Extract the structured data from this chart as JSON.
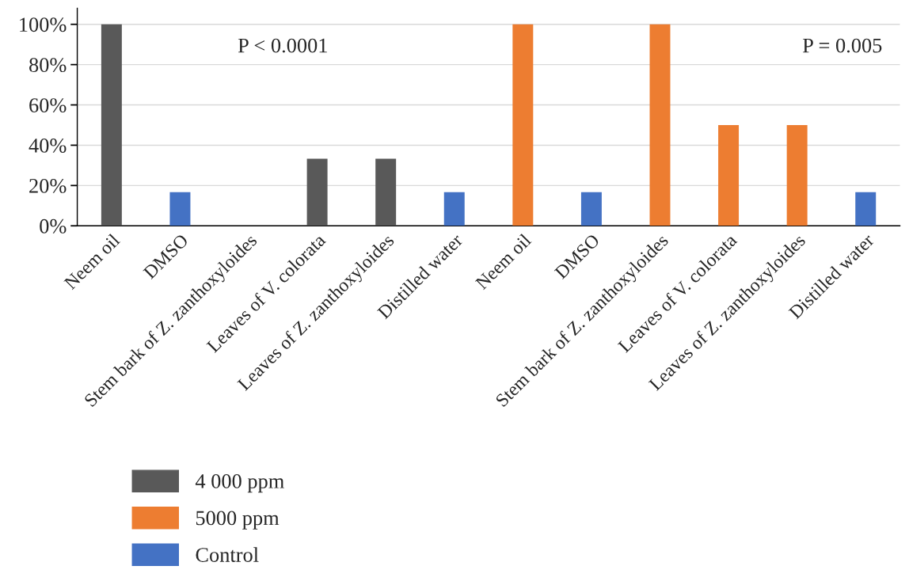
{
  "chart_data": {
    "type": "bar",
    "categories": [
      "Neem oil",
      "DMSO",
      "Stem bark of Z. zanthoxyloides",
      "Leaves of V. colorata",
      "Leaves of Z. zanthoxyloides",
      "Distilled water",
      "Neem oil",
      "DMSO",
      "Stem bark of Z. zanthoxyloides",
      "Leaves of V. colorata",
      "Leaves of Z. zanthoxyloides",
      "Distilled water"
    ],
    "series": [
      {
        "name": "4 000 ppm",
        "color": "#595959",
        "values": [
          100,
          null,
          null,
          33.3,
          33.3,
          null,
          null,
          null,
          null,
          null,
          null,
          null
        ]
      },
      {
        "name": "5000 ppm",
        "color": "#ed7d31",
        "values": [
          null,
          null,
          null,
          null,
          null,
          null,
          100,
          null,
          100,
          50,
          50,
          null
        ]
      },
      {
        "name": "Control",
        "color": "#4472c4",
        "values": [
          null,
          16.7,
          null,
          null,
          null,
          16.7,
          null,
          16.7,
          null,
          null,
          null,
          16.7
        ]
      }
    ],
    "ylim": [
      0,
      108
    ],
    "yticks": [
      {
        "value": 0,
        "label": "0%"
      },
      {
        "value": 20,
        "label": "20%"
      },
      {
        "value": 40,
        "label": "40%"
      },
      {
        "value": 60,
        "label": "60%"
      },
      {
        "value": 80,
        "label": "80%"
      },
      {
        "value": 100,
        "label": "100%"
      }
    ],
    "grid": "y",
    "legend": "bottom left",
    "annotations": [
      "P < 0.0001",
      "P = 0.005"
    ]
  }
}
